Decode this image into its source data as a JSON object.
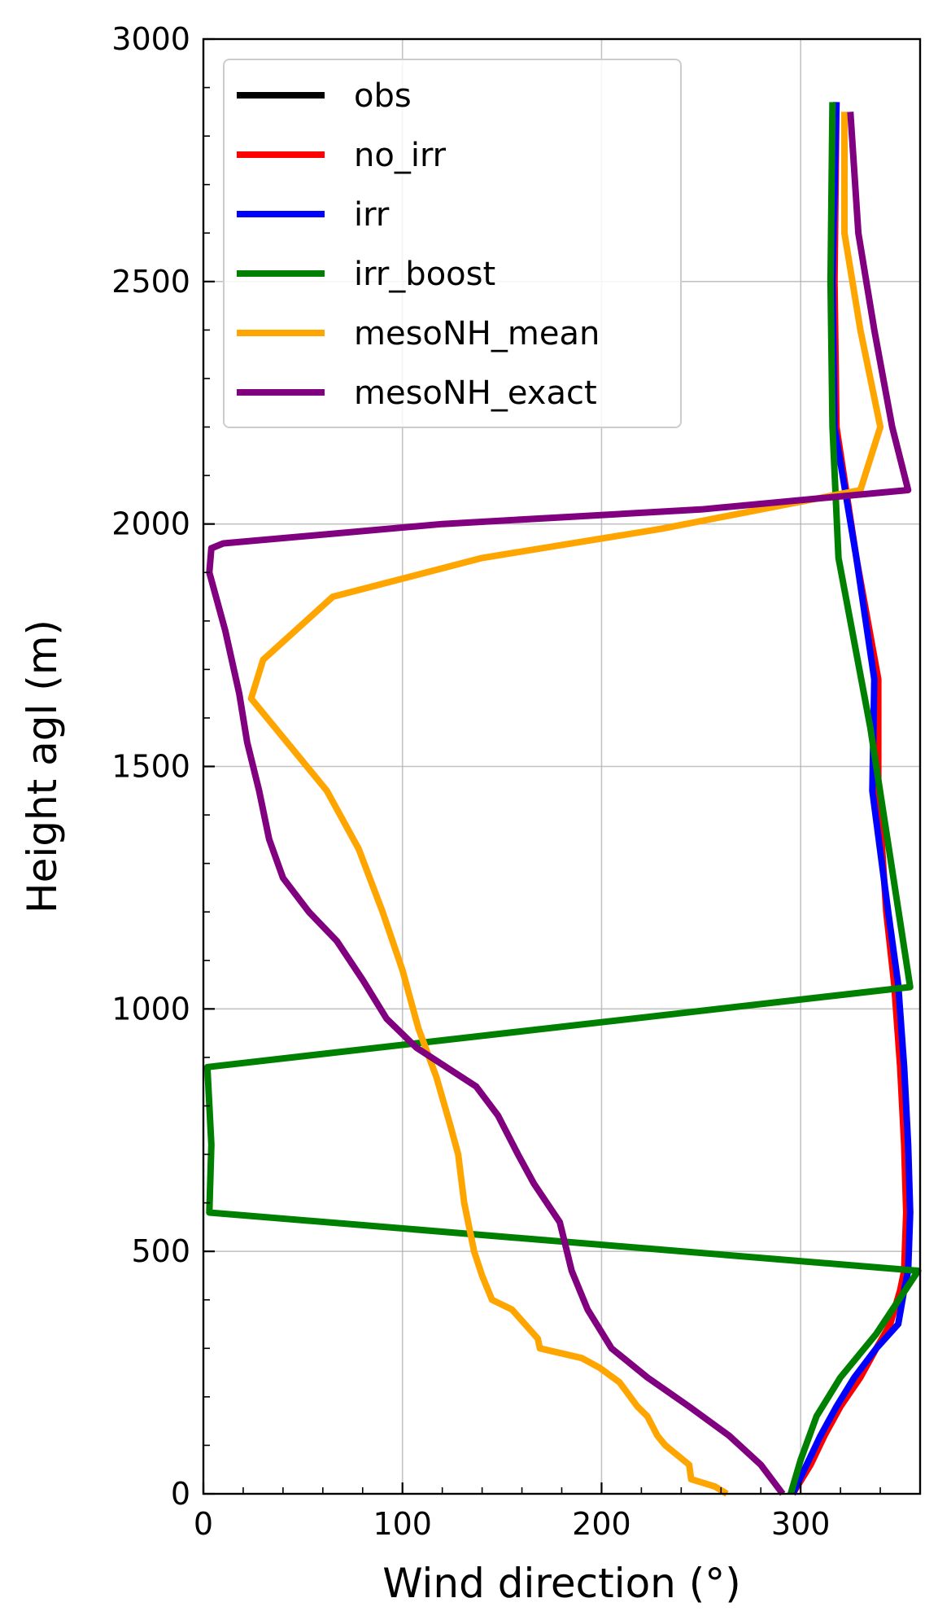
{
  "chart_data": {
    "type": "line",
    "title": "",
    "xlabel": "Wind direction (°)",
    "ylabel": "Height agl (m)",
    "xlim": [
      0,
      360
    ],
    "ylim": [
      0,
      3000
    ],
    "x_ticks": [
      0,
      100,
      200,
      300
    ],
    "y_ticks": [
      0,
      500,
      1000,
      1500,
      2000,
      2500,
      3000
    ],
    "x_tick_labels": [
      "0",
      "100",
      "200",
      "300"
    ],
    "y_tick_labels": [
      "0",
      "500",
      "1000",
      "1500",
      "2000",
      "2500",
      "3000"
    ],
    "grid": true,
    "legend_position": "top-left",
    "series": [
      {
        "name": "obs",
        "color": "#000000",
        "points": []
      },
      {
        "name": "no_irr",
        "color": "#ff0000",
        "points": [
          [
            296,
            0
          ],
          [
            305,
            60
          ],
          [
            312,
            120
          ],
          [
            320,
            180
          ],
          [
            330,
            240
          ],
          [
            338,
            300
          ],
          [
            345,
            350
          ],
          [
            350,
            420
          ],
          [
            352,
            460
          ],
          [
            353,
            580
          ],
          [
            352,
            720
          ],
          [
            350,
            880
          ],
          [
            347,
            1050
          ],
          [
            343,
            1200
          ],
          [
            339,
            1450
          ],
          [
            339,
            1680
          ],
          [
            328,
            1930
          ],
          [
            318,
            2200
          ],
          [
            317,
            2500
          ],
          [
            318,
            2870
          ]
        ]
      },
      {
        "name": "irr",
        "color": "#0000ff",
        "points": [
          [
            296,
            0
          ],
          [
            303,
            60
          ],
          [
            310,
            120
          ],
          [
            318,
            180
          ],
          [
            327,
            240
          ],
          [
            338,
            300
          ],
          [
            349,
            350
          ],
          [
            352,
            420
          ],
          [
            354,
            460
          ],
          [
            355,
            580
          ],
          [
            354,
            720
          ],
          [
            352,
            880
          ],
          [
            349,
            1050
          ],
          [
            344,
            1200
          ],
          [
            336,
            1450
          ],
          [
            337,
            1680
          ],
          [
            328,
            1930
          ],
          [
            317,
            2200
          ],
          [
            316,
            2500
          ],
          [
            318,
            2870
          ]
        ]
      },
      {
        "name": "irr_boost",
        "color": "#008000",
        "points": [
          [
            295,
            0
          ],
          [
            300,
            70
          ],
          [
            308,
            160
          ],
          [
            320,
            240
          ],
          [
            338,
            330
          ],
          [
            359,
            460
          ],
          [
            3,
            580
          ],
          [
            4,
            720
          ],
          [
            2,
            880
          ],
          [
            355,
            1045
          ],
          [
            335,
            1580
          ],
          [
            319,
            1930
          ],
          [
            316,
            2200
          ],
          [
            315,
            2500
          ],
          [
            316,
            2870
          ]
        ]
      },
      {
        "name": "mesoNH_mean",
        "color": "#ffa500",
        "points": [
          [
            263,
            0
          ],
          [
            257,
            15
          ],
          [
            245,
            30
          ],
          [
            244,
            60
          ],
          [
            232,
            100
          ],
          [
            228,
            120
          ],
          [
            223,
            160
          ],
          [
            218,
            180
          ],
          [
            209,
            230
          ],
          [
            199,
            260
          ],
          [
            190,
            280
          ],
          [
            169,
            300
          ],
          [
            168,
            320
          ],
          [
            155,
            380
          ],
          [
            145,
            400
          ],
          [
            140,
            450
          ],
          [
            136,
            500
          ],
          [
            131,
            600
          ],
          [
            128,
            700
          ],
          [
            124,
            760
          ],
          [
            117,
            860
          ],
          [
            108,
            960
          ],
          [
            100,
            1080
          ],
          [
            90,
            1200
          ],
          [
            78,
            1330
          ],
          [
            62,
            1450
          ],
          [
            24,
            1640
          ],
          [
            30,
            1720
          ],
          [
            65,
            1850
          ],
          [
            140,
            1930
          ],
          [
            230,
            1990
          ],
          [
            330,
            2070
          ],
          [
            340,
            2200
          ],
          [
            330,
            2400
          ],
          [
            322,
            2600
          ],
          [
            322,
            2850
          ]
        ]
      },
      {
        "name": "mesoNH_exact",
        "color": "#800080",
        "points": [
          [
            291,
            0
          ],
          [
            280,
            60
          ],
          [
            264,
            120
          ],
          [
            244,
            180
          ],
          [
            223,
            240
          ],
          [
            205,
            300
          ],
          [
            193,
            380
          ],
          [
            185,
            460
          ],
          [
            179,
            560
          ],
          [
            166,
            640
          ],
          [
            158,
            700
          ],
          [
            148,
            780
          ],
          [
            137,
            840
          ],
          [
            122,
            880
          ],
          [
            107,
            920
          ],
          [
            92,
            980
          ],
          [
            80,
            1060
          ],
          [
            67,
            1140
          ],
          [
            53,
            1200
          ],
          [
            40,
            1270
          ],
          [
            33,
            1350
          ],
          [
            28,
            1450
          ],
          [
            22,
            1550
          ],
          [
            18,
            1650
          ],
          [
            11,
            1780
          ],
          [
            3,
            1900
          ],
          [
            4,
            1950
          ],
          [
            10,
            1960
          ],
          [
            120,
            2000
          ],
          [
            250,
            2030
          ],
          [
            354,
            2070
          ],
          [
            346,
            2200
          ],
          [
            337,
            2400
          ],
          [
            329,
            2600
          ],
          [
            325,
            2850
          ]
        ]
      }
    ]
  }
}
